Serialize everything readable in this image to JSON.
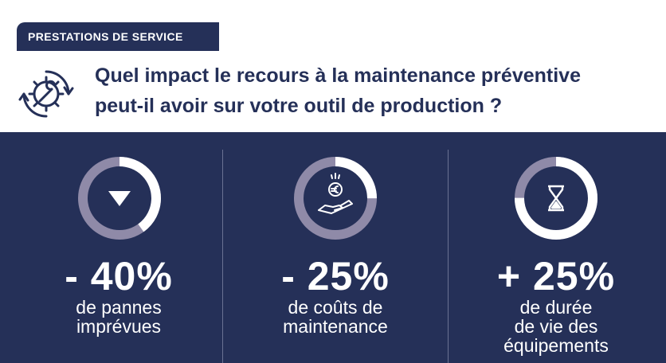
{
  "header": {
    "tag": "PRESTATIONS DE SERVICE",
    "title_line1": "Quel impact le recours à la maintenance préventive",
    "title_line2": "peut-il avoir sur votre outil de production ?",
    "icon": "gear-wrench-icon"
  },
  "colors": {
    "navy": "#253058",
    "ring_fill": "#ffffff",
    "ring_rest": "#8f8aa8"
  },
  "stats": [
    {
      "value": "- 40%",
      "desc": [
        "de pannes",
        "imprévues"
      ],
      "icon": "down-triangle-icon",
      "fill_fraction": 0.4
    },
    {
      "value": "- 25%",
      "desc": [
        "de coûts de",
        "maintenance"
      ],
      "icon": "euro-coin-hand-icon",
      "fill_fraction": 0.25
    },
    {
      "value": "+ 25%",
      "desc": [
        "de durée",
        "de vie des",
        "équipements"
      ],
      "icon": "hourglass-icon",
      "fill_fraction": 0.75
    }
  ]
}
